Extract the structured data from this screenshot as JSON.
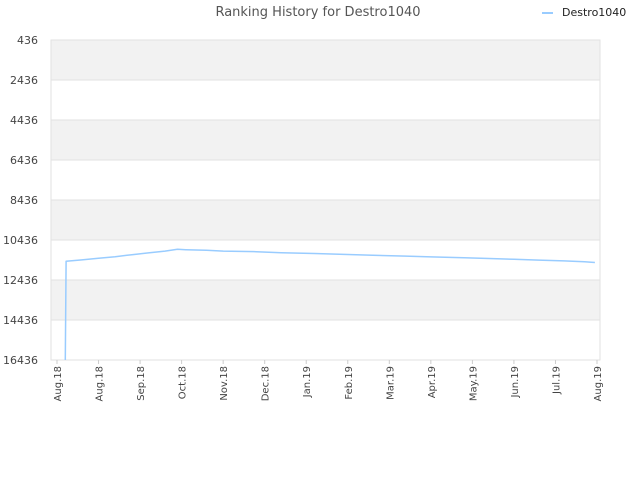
{
  "chart_data": {
    "type": "line",
    "title": "Ranking History for Destro1040",
    "xlabel": "",
    "ylabel": "",
    "y_inverted": true,
    "ylim": [
      16436,
      436
    ],
    "yticks": [
      436,
      2436,
      4436,
      6436,
      8436,
      10436,
      12436,
      14436,
      16436
    ],
    "ytick_labels": [
      "436",
      "2436",
      "4436",
      "6436",
      "8436",
      "10436",
      "12436",
      "14436",
      "16436"
    ],
    "xtick_labels": [
      "Aug.18",
      "Aug.18",
      "Sep.18",
      "Oct.18",
      "Nov.18",
      "Dec.18",
      "Jan.19",
      "Feb.19",
      "Mar.19",
      "Apr.19",
      "May.19",
      "Jun.19",
      "Jul.19",
      "Aug.19"
    ],
    "legend": {
      "position": "top-right",
      "label": "Destro1040"
    },
    "grid": true,
    "series": [
      {
        "name": "Destro1040",
        "color": "#99ccff",
        "x_tick_index": [
          0.2,
          0.22,
          0.6,
          1.0,
          1.4,
          1.8,
          2.2,
          2.6,
          2.9,
          3.1,
          3.6,
          4.0,
          4.8,
          5.4,
          6.2,
          7.0,
          7.6,
          8.4,
          9.0,
          9.8,
          10.4,
          11.0,
          11.6,
          12.2,
          12.7,
          12.95
        ],
        "values": [
          16436,
          11500,
          11430,
          11350,
          11270,
          11170,
          11080,
          10990,
          10900,
          10920,
          10950,
          10990,
          11020,
          11070,
          11110,
          11160,
          11200,
          11240,
          11280,
          11320,
          11360,
          11400,
          11440,
          11480,
          11520,
          11560
        ]
      }
    ]
  }
}
